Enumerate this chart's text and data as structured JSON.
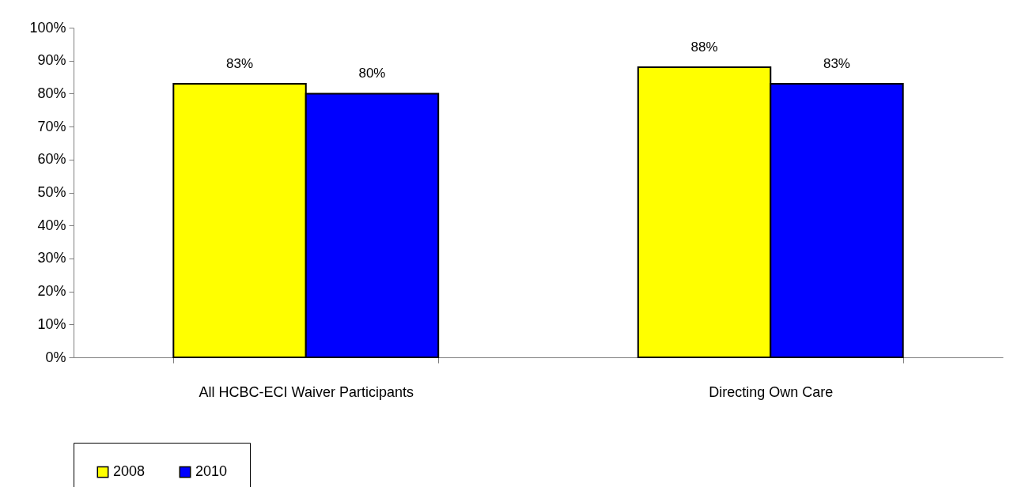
{
  "chart_data": {
    "type": "bar",
    "categories": [
      "All HCBC-ECI Waiver Participants",
      "Directing Own Care"
    ],
    "series": [
      {
        "name": "2008",
        "color": "#ffff00",
        "values": [
          83,
          88
        ],
        "value_labels": [
          "83%",
          "88%"
        ]
      },
      {
        "name": "2010",
        "color": "#0000ff",
        "values": [
          80,
          83
        ],
        "value_labels": [
          "80%",
          "83%"
        ]
      }
    ],
    "ylim": [
      0,
      100
    ],
    "yticks": [
      {
        "value": 0,
        "label": "0%"
      },
      {
        "value": 10,
        "label": "10%"
      },
      {
        "value": 20,
        "label": "20%"
      },
      {
        "value": 30,
        "label": "30%"
      },
      {
        "value": 40,
        "label": "40%"
      },
      {
        "value": 50,
        "label": "50%"
      },
      {
        "value": 60,
        "label": "60%"
      },
      {
        "value": 70,
        "label": "70%"
      },
      {
        "value": 80,
        "label": "80%"
      },
      {
        "value": 90,
        "label": "90%"
      },
      {
        "value": 100,
        "label": "100%"
      }
    ],
    "grid": false,
    "legend": "bottom"
  }
}
